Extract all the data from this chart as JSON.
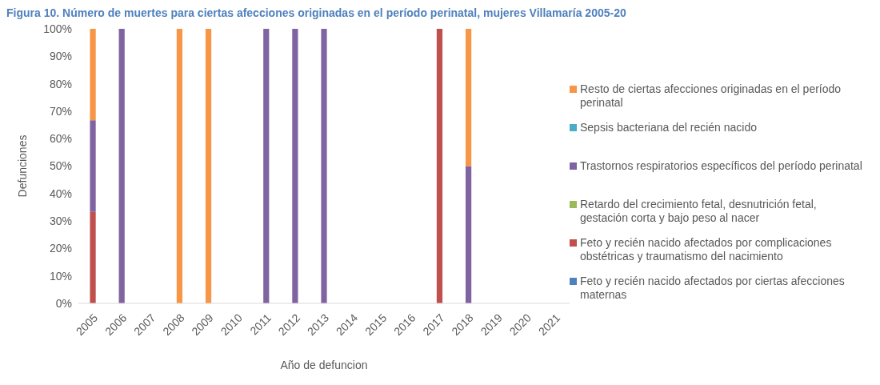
{
  "chart_data": {
    "type": "bar",
    "stacked": true,
    "title": "Figura 10. Número de muertes para ciertas afecciones originadas en el período perinatal, mujeres Villamaría 2005-20",
    "xlabel": "Año de defuncion",
    "ylabel": "Defunciones",
    "categories": [
      "2005",
      "2006",
      "2007",
      "2008",
      "2009",
      "2010",
      "2011",
      "2012",
      "2013",
      "2014",
      "2015",
      "2016",
      "2017",
      "2018",
      "2019",
      "2020",
      "2021"
    ],
    "ylim": [
      0,
      100
    ],
    "yticks": [
      {
        "value": 0,
        "label": "0%"
      },
      {
        "value": 10,
        "label": "10%"
      },
      {
        "value": 20,
        "label": "20%"
      },
      {
        "value": 30,
        "label": "30%"
      },
      {
        "value": 40,
        "label": "40%"
      },
      {
        "value": 50,
        "label": "50%"
      },
      {
        "value": 60,
        "label": "60%"
      },
      {
        "value": 70,
        "label": "70%"
      },
      {
        "value": 80,
        "label": "80%"
      },
      {
        "value": 90,
        "label": "90%"
      },
      {
        "value": 100,
        "label": "100%"
      }
    ],
    "grid": false,
    "legend": "right",
    "series": [
      {
        "name": "Feto y recién nacido afectados por ciertas afecciones maternas",
        "color": "#4f81bd",
        "values": [
          null,
          null,
          null,
          null,
          null,
          null,
          null,
          null,
          null,
          null,
          null,
          null,
          null,
          null,
          null,
          null,
          null
        ]
      },
      {
        "name": "Feto y recién nacido afectados por complicaciones obstétricas y traumatismo del nacimiento",
        "color": "#c0504d",
        "values": [
          33.3,
          null,
          null,
          null,
          null,
          null,
          null,
          null,
          null,
          null,
          null,
          null,
          100,
          null,
          null,
          null,
          null
        ]
      },
      {
        "name": "Retardo del crecimiento fetal, desnutrición fetal, gestación corta y bajo peso al nacer",
        "color": "#9bbb59",
        "values": [
          null,
          null,
          null,
          null,
          null,
          null,
          null,
          null,
          null,
          null,
          null,
          null,
          null,
          null,
          null,
          null,
          null
        ]
      },
      {
        "name": "Trastornos respiratorios específicos del período perinatal",
        "color": "#8064a2",
        "values": [
          33.4,
          100,
          null,
          null,
          null,
          null,
          100,
          100,
          100,
          null,
          null,
          null,
          null,
          50,
          null,
          null,
          null
        ]
      },
      {
        "name": "Sepsis bacteriana del recién nacido",
        "color": "#4bacc6",
        "values": [
          null,
          null,
          null,
          null,
          null,
          null,
          null,
          null,
          null,
          null,
          null,
          null,
          null,
          null,
          null,
          null,
          null
        ]
      },
      {
        "name": "Resto de ciertas afecciones originadas en el período perinatal",
        "color": "#f79646",
        "values": [
          33.3,
          null,
          null,
          100,
          100,
          null,
          null,
          null,
          null,
          null,
          null,
          null,
          null,
          50,
          null,
          null,
          null
        ]
      }
    ]
  }
}
